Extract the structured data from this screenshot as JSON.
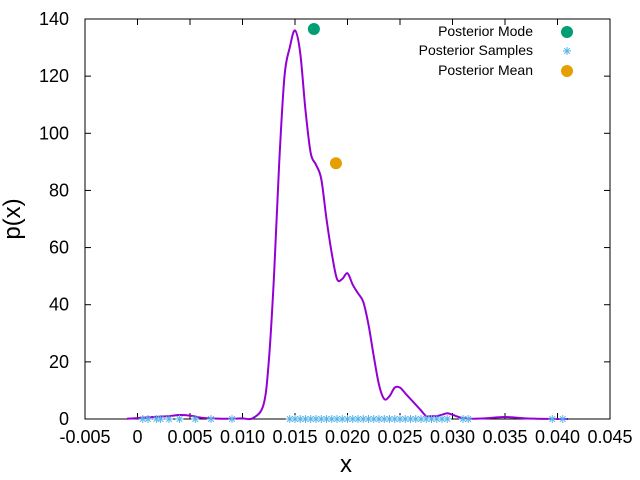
{
  "chart_data": {
    "type": "line",
    "title": "",
    "xlabel": "x",
    "ylabel": "p(x)",
    "xlim": [
      -0.005,
      0.045
    ],
    "ylim": [
      0,
      140
    ],
    "xticks": [
      -0.005,
      0,
      0.005,
      0.01,
      0.015,
      0.02,
      0.025,
      0.03,
      0.035,
      0.04,
      0.045
    ],
    "xtick_labels": [
      "-0.005",
      "0",
      "0.005",
      "0.010",
      "0.015",
      "0.020",
      "0.025",
      "0.030",
      "0.035",
      "0.040",
      "0.045"
    ],
    "yticks": [
      0,
      20,
      40,
      60,
      80,
      100,
      120,
      140
    ],
    "ytick_labels": [
      "0",
      "20",
      "40",
      "60",
      "80",
      "100",
      "120",
      "140"
    ],
    "grid": false,
    "legend_position": "top-right",
    "colors": {
      "density": "#9400d3",
      "mode": "#009e73",
      "samples": "#56b4e9",
      "mean": "#e69f00"
    },
    "density_curve": {
      "x": [
        -0.001,
        0.0,
        0.001,
        0.002,
        0.003,
        0.004,
        0.005,
        0.006,
        0.007,
        0.008,
        0.009,
        0.01,
        0.011,
        0.012,
        0.0125,
        0.013,
        0.0135,
        0.014,
        0.0145,
        0.015,
        0.0155,
        0.016,
        0.0165,
        0.017,
        0.0175,
        0.018,
        0.0185,
        0.019,
        0.0195,
        0.02,
        0.0205,
        0.021,
        0.0215,
        0.022,
        0.0225,
        0.023,
        0.0235,
        0.024,
        0.0245,
        0.025,
        0.0255,
        0.026,
        0.0265,
        0.027,
        0.0275,
        0.028,
        0.0285,
        0.029,
        0.0295,
        0.03,
        0.0305,
        0.031,
        0.0315,
        0.032,
        0.033,
        0.034,
        0.035,
        0.036,
        0.037,
        0.038,
        0.039,
        0.04,
        0.041
      ],
      "y": [
        0.1,
        0.3,
        0.6,
        0.8,
        1.0,
        1.4,
        1.2,
        0.5,
        0.2,
        0.1,
        0.1,
        0.2,
        0.3,
        5,
        20,
        50,
        90,
        120,
        130,
        136,
        128,
        108,
        93,
        89,
        84,
        70,
        58,
        49,
        49,
        51,
        47,
        44,
        41,
        33,
        22,
        12,
        7,
        8,
        11,
        11,
        9,
        7,
        5,
        3,
        1,
        1,
        1,
        1.5,
        2,
        1.5,
        0.8,
        0.3,
        0.1,
        0.1,
        0.2,
        0.5,
        0.7,
        0.5,
        0.2,
        0.1,
        0.05,
        0.0,
        0.0
      ]
    },
    "series": [
      {
        "name": "Posterior Mode",
        "type": "scatter",
        "points": [
          [
            0.0168,
            136.5
          ]
        ]
      },
      {
        "name": "Posterior Samples",
        "type": "scatter",
        "x": [
          0.0005,
          0.001,
          0.0018,
          0.0022,
          0.003,
          0.004,
          0.0055,
          0.007,
          0.009,
          0.0145,
          0.015,
          0.0155,
          0.016,
          0.0165,
          0.017,
          0.0175,
          0.018,
          0.0185,
          0.019,
          0.0195,
          0.02,
          0.0205,
          0.021,
          0.0215,
          0.022,
          0.0225,
          0.023,
          0.0235,
          0.024,
          0.0245,
          0.025,
          0.0255,
          0.026,
          0.0265,
          0.027,
          0.0275,
          0.028,
          0.0285,
          0.029,
          0.0295,
          0.031,
          0.0315,
          0.0395,
          0.0405
        ],
        "y_value": 0
      },
      {
        "name": "Posterior Mean",
        "type": "scatter",
        "points": [
          [
            0.0189,
            89.5
          ]
        ]
      }
    ]
  }
}
